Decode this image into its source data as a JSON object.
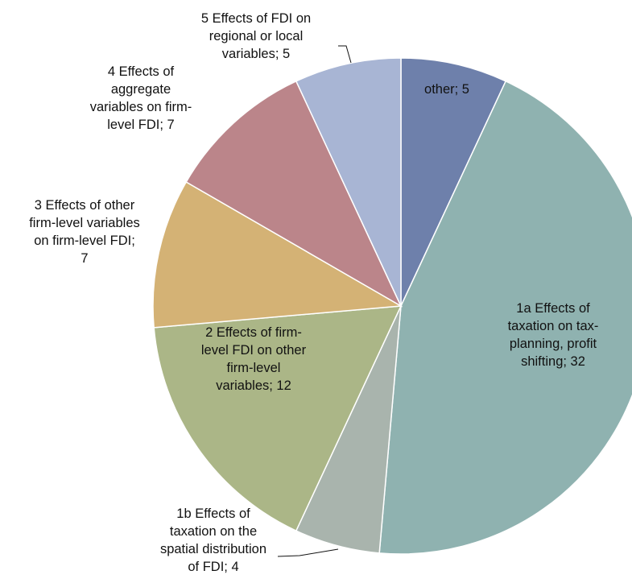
{
  "chart_data": {
    "type": "pie",
    "title": "",
    "start_angle_deg": 0,
    "direction": "clockwise",
    "slices": [
      {
        "name": "other",
        "value": 5,
        "label_lines": [
          "other; 5"
        ],
        "color": "#6e80ab"
      },
      {
        "name": "1a Effects of taxation on tax-planning, profit shifting",
        "value": 32,
        "label_lines": [
          "1a Effects of",
          "taxation on tax-",
          "planning, profit",
          "shifting; 32"
        ],
        "color": "#8fb2b0"
      },
      {
        "name": "1b Effects of taxation on the spatial distribution of FDI",
        "value": 4,
        "label_lines": [
          "1b Effects of",
          "taxation on the",
          "spatial distribution",
          "of FDI; 4"
        ],
        "color": "#a9b4ad"
      },
      {
        "name": "2 Effects of firm-level FDI on other firm-level variables",
        "value": 12,
        "label_lines": [
          "2 Effects of firm-",
          "level FDI on other",
          "firm-level",
          "variables; 12"
        ],
        "color": "#abb687"
      },
      {
        "name": "3 Effects of other firm-level variables on firm-level FDI",
        "value": 7,
        "label_lines": [
          "3 Effects of other",
          "firm-level variables",
          "on firm-level FDI;",
          "7"
        ],
        "color": "#d4b275"
      },
      {
        "name": "4 Effects of aggregate variables on firm-level FDI",
        "value": 7,
        "label_lines": [
          "4 Effects of",
          "aggregate",
          "variables on firm-",
          "level FDI; 7"
        ],
        "color": "#bb858a"
      },
      {
        "name": "5 Effects of FDI on regional or local variables",
        "value": 5,
        "label_lines": [
          "5 Effects of FDI on",
          "regional or local",
          "variables; 5"
        ],
        "color": "#a8b5d4"
      }
    ]
  }
}
